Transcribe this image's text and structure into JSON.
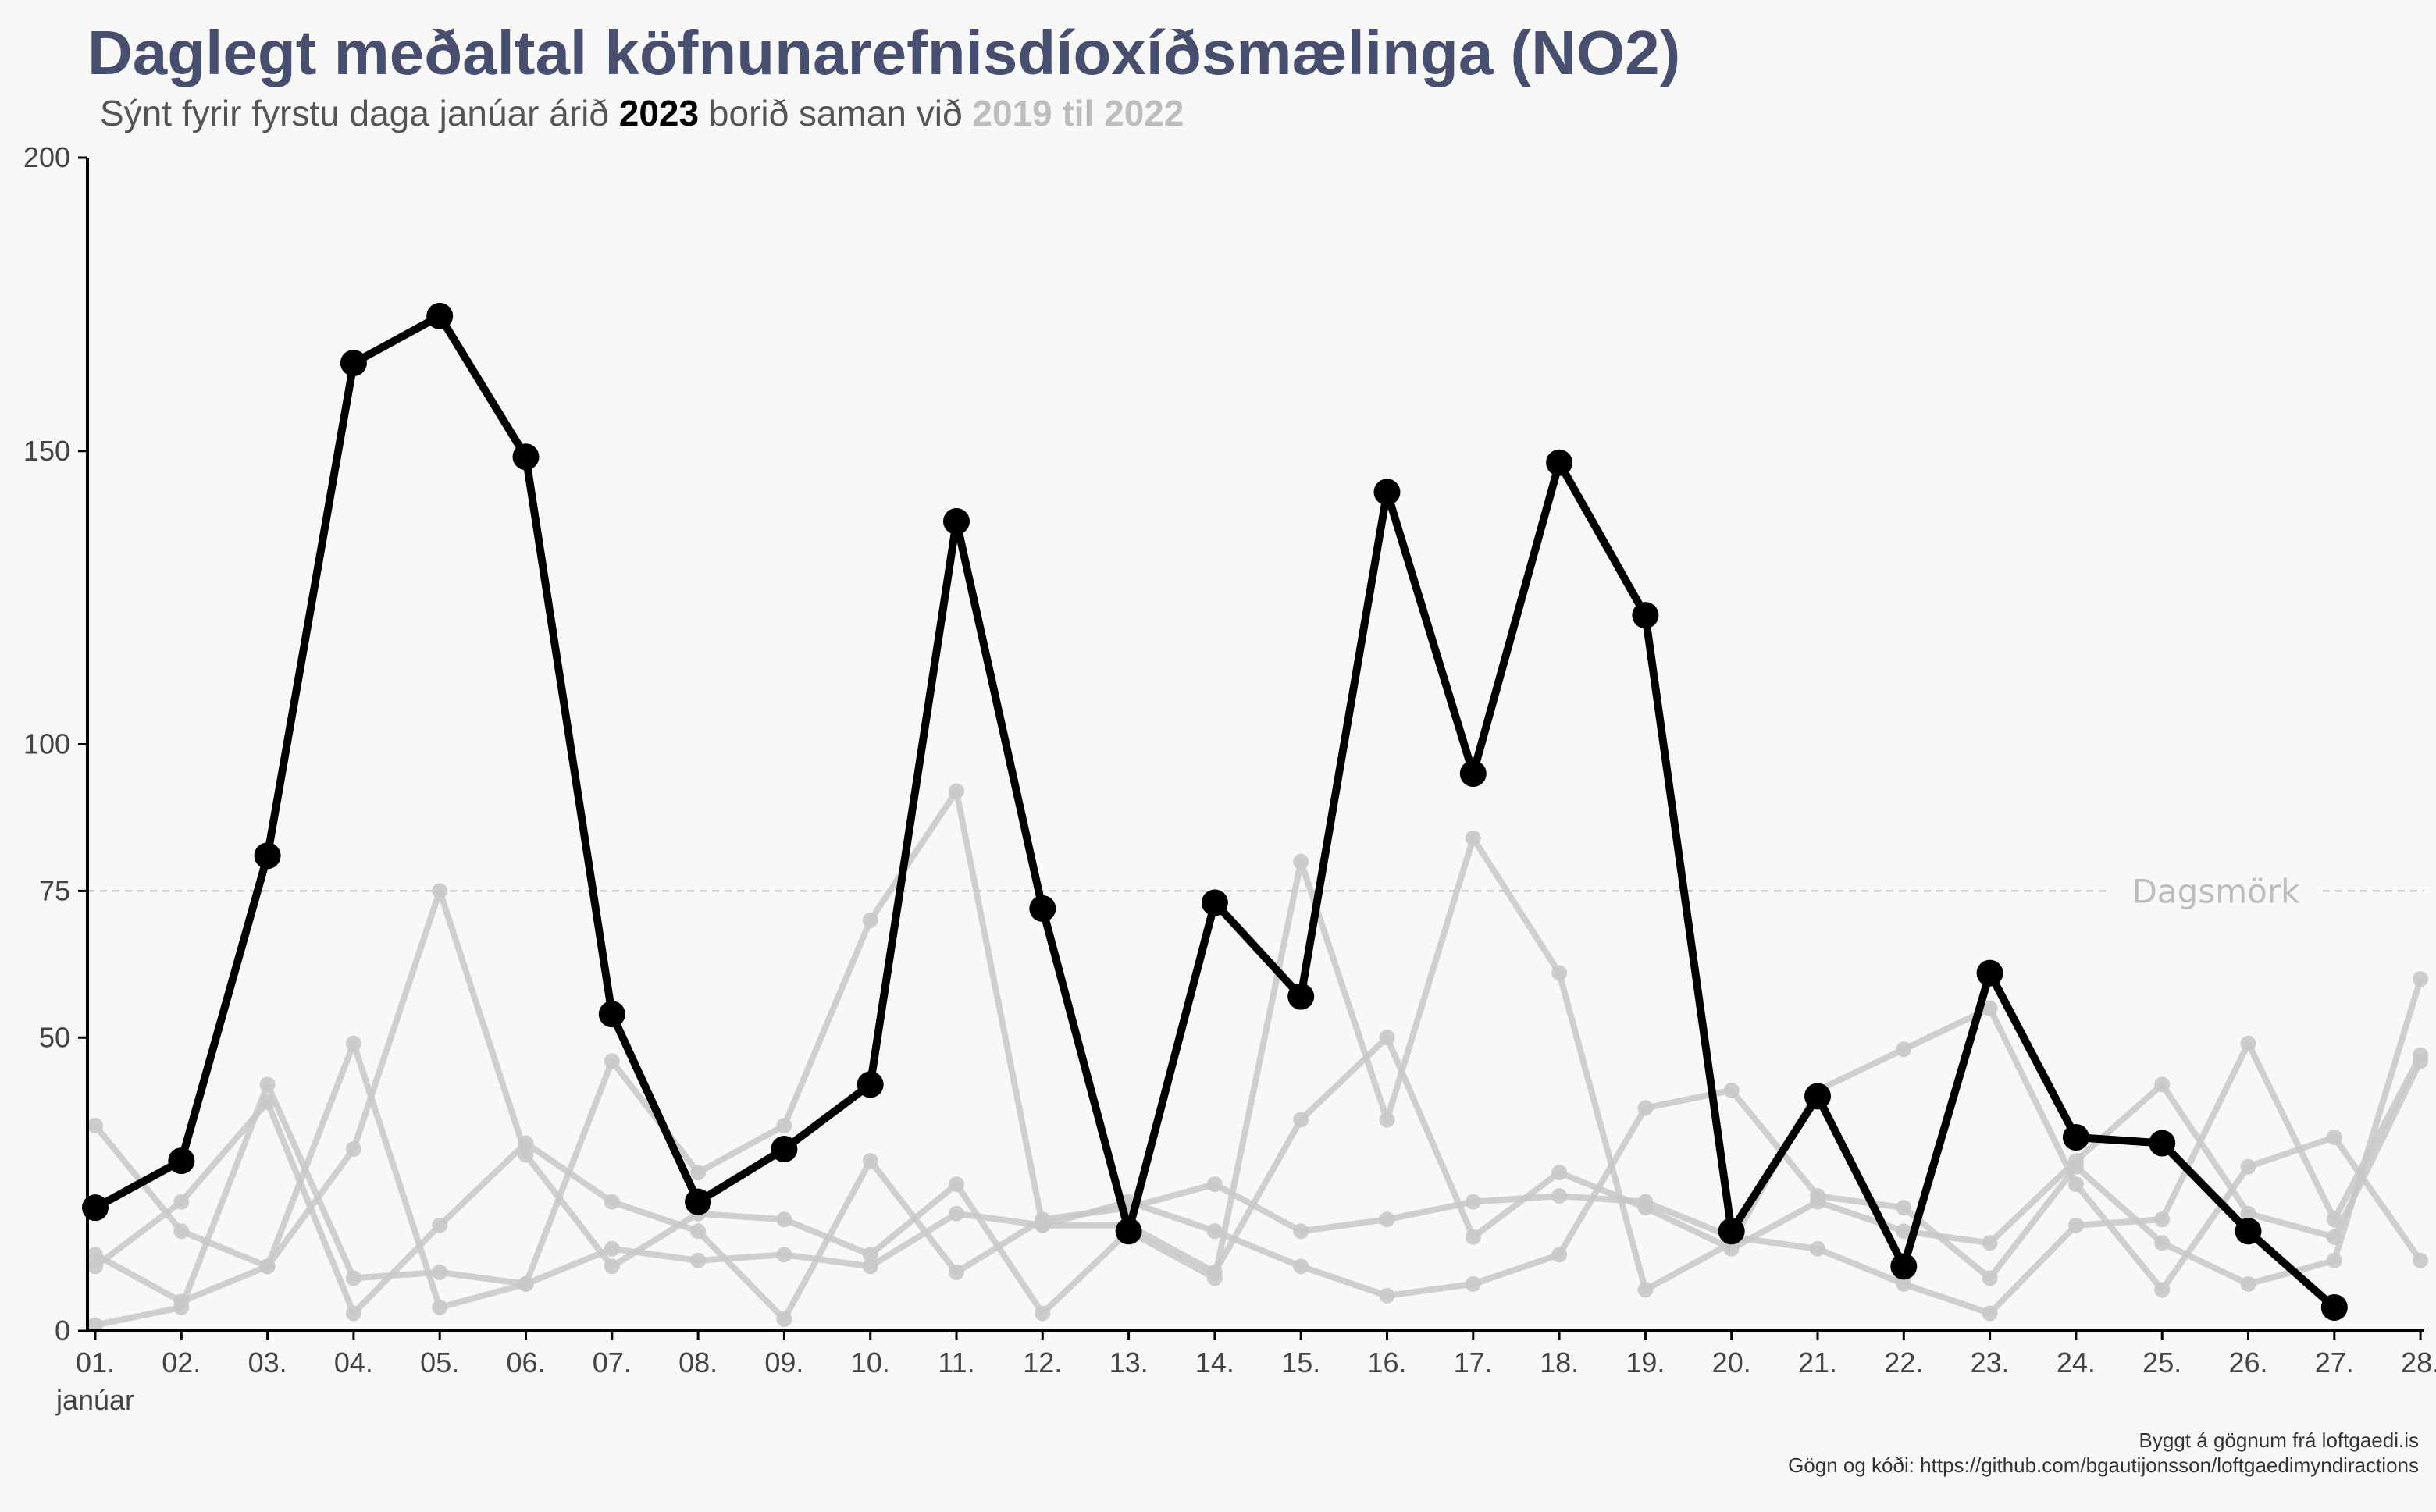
{
  "title": "Daglegt meðaltal köfnunarefnisdíoxíðsmælinga (NO2)",
  "subtitle": {
    "before": "Sýnt fyrir fyrstu daga janúar árið ",
    "highlight_year": "2023",
    "middle": " borið saman við ",
    "compare_range": "2019 til 2022"
  },
  "captions": {
    "line1": "Byggt á gögnum frá loftgaedi.is",
    "line2": "Gögn og kóði: https://github.com/bgautijonsson/loftgaedimyndiractions"
  },
  "colors": {
    "highlight": "#000000",
    "background_series": "#c8c8c8",
    "title": "#474e6e",
    "threshold": "#bdbdbd"
  },
  "chart_data": {
    "type": "line",
    "title": "Daglegt meðaltal köfnunarefnisdíoxíðsmælinga (NO2)",
    "xlabel": "",
    "ylabel": "",
    "ylim": [
      0,
      200
    ],
    "yticks": [
      0,
      50,
      75,
      100,
      150,
      200
    ],
    "x_tick_labels": [
      "01.",
      "02.",
      "03.",
      "04.",
      "05.",
      "06.",
      "07.",
      "08.",
      "09.",
      "10.",
      "11.",
      "12.",
      "13.",
      "14.",
      "15.",
      "16.",
      "17.",
      "18.",
      "19.",
      "20.",
      "21.",
      "22.",
      "23.",
      "24.",
      "25.",
      "26.",
      "27.",
      "28."
    ],
    "x_sublabel": "janúar",
    "threshold": {
      "value": 75,
      "label": "Dagsmörk"
    },
    "highlight_series": {
      "name": "2023",
      "values": [
        21,
        29,
        81,
        165,
        173,
        149,
        54,
        22,
        31,
        42,
        138,
        72,
        17,
        73,
        57,
        143,
        95,
        148,
        122,
        17,
        40,
        11,
        61,
        33,
        32,
        17,
        4
      ]
    },
    "background_series": [
      {
        "values": [
          35,
          17,
          11,
          31,
          75,
          30,
          11,
          20,
          19,
          13,
          25,
          3,
          17,
          9,
          80,
          36,
          84,
          61,
          7,
          15,
          41,
          48,
          55,
          25,
          7,
          28,
          33,
          12
        ]
      },
      {
        "values": [
          13,
          5,
          11,
          49,
          4,
          8,
          46,
          27,
          35,
          70,
          92,
          18,
          22,
          17,
          11,
          6,
          8,
          13,
          38,
          41,
          23,
          21,
          9,
          28,
          15,
          8,
          12,
          60
        ]
      },
      {
        "values": [
          11,
          22,
          39,
          3,
          18,
          32,
          22,
          17,
          2,
          29,
          10,
          19,
          21,
          25,
          17,
          19,
          22,
          23,
          22,
          16,
          14,
          8,
          3,
          18,
          19,
          49,
          19,
          47
        ]
      },
      {
        "values": [
          1,
          4,
          42,
          9,
          10,
          8,
          14,
          12,
          13,
          11,
          20,
          18,
          18,
          10,
          36,
          50,
          16,
          27,
          21,
          14,
          22,
          17,
          15,
          29,
          42,
          20,
          16,
          46
        ]
      }
    ]
  }
}
